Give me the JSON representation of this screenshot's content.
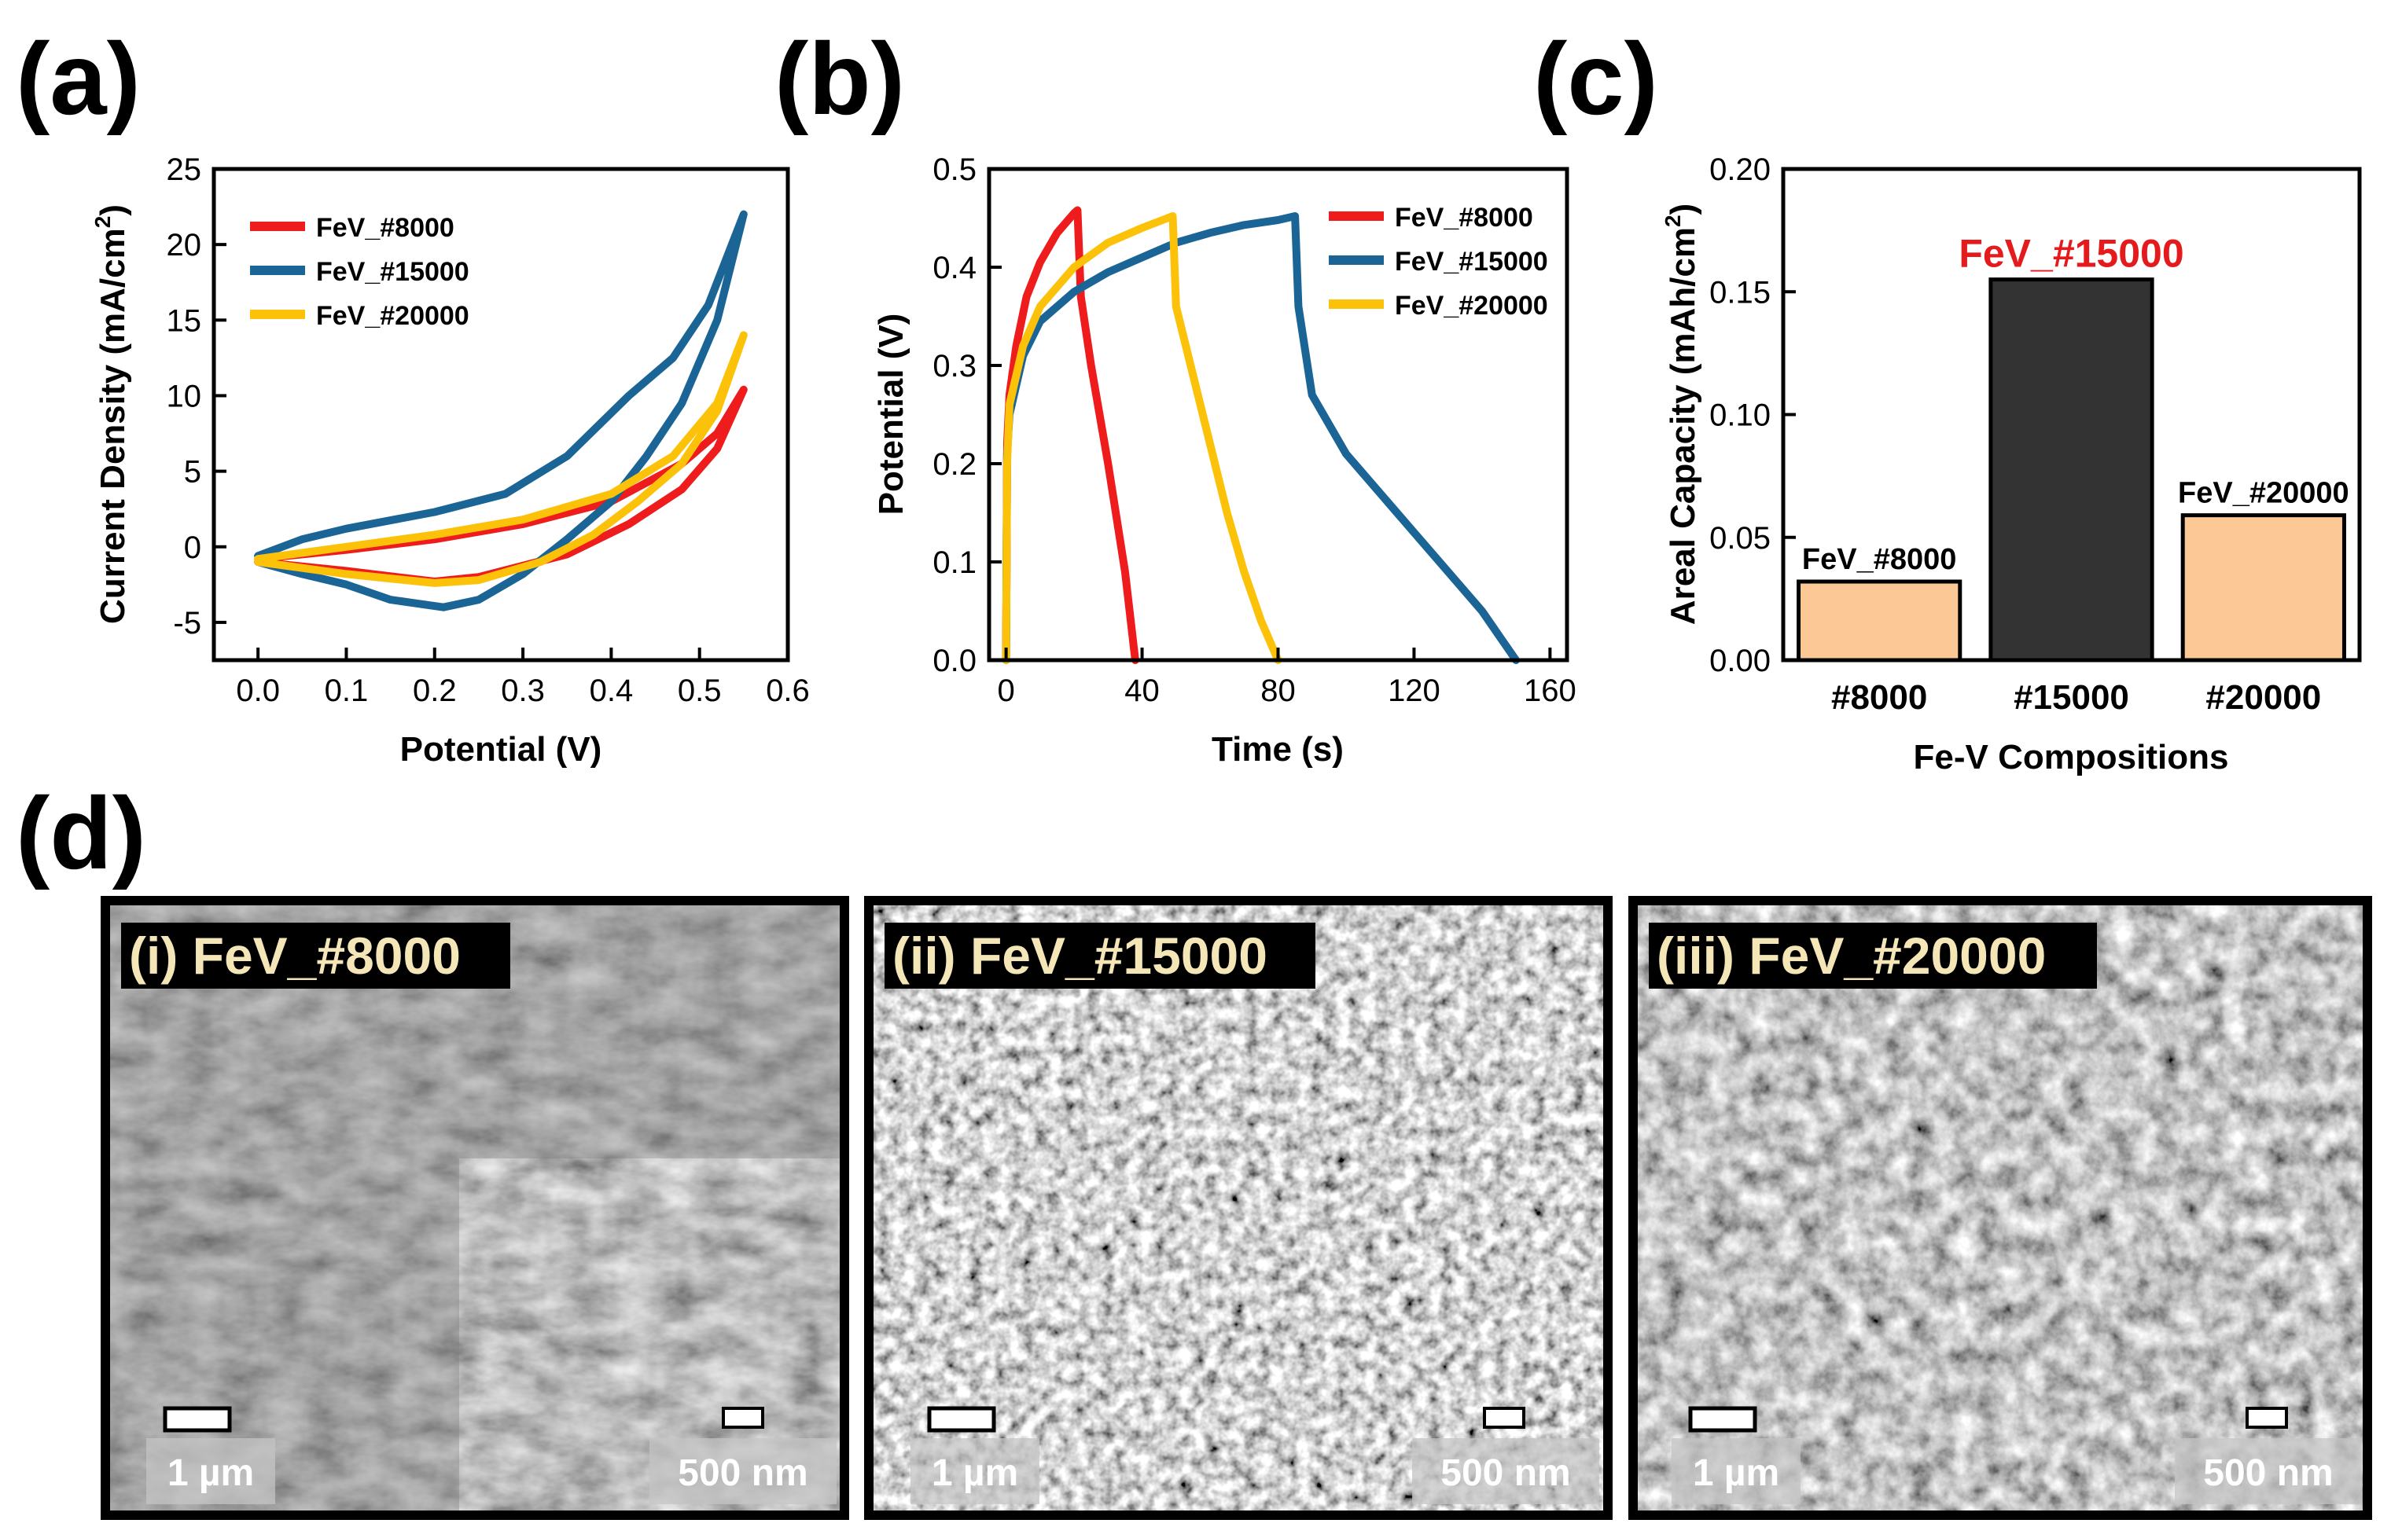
{
  "panel_labels": {
    "a": "(a)",
    "b": "(b)",
    "c": "(c)",
    "d": "(d)"
  },
  "colors": {
    "red": "#ee1c1c",
    "blue": "#1a6496",
    "yellow": "#fcc20a",
    "bar_light": "#fcc896",
    "bar_dark": "#333333",
    "highlight": "#e41a1c",
    "sem_caption": "#f5e6b8"
  },
  "chart_data": [
    {
      "id": "a",
      "type": "line",
      "title": "",
      "xlabel": "Potential (V)",
      "ylabel": "Current Density (mA/cm",
      "ylabel_sup": "2",
      "ylabel_end": ")",
      "xlim": [
        -0.05,
        0.6
      ],
      "ylim": [
        -7.5,
        25
      ],
      "xticks": [
        0.0,
        0.1,
        0.2,
        0.3,
        0.4,
        0.5,
        0.6
      ],
      "xtick_labels": [
        "0.0",
        "0.1",
        "0.2",
        "0.3",
        "0.4",
        "0.5",
        "0.6"
      ],
      "yticks": [
        -5,
        0,
        5,
        10,
        15,
        20,
        25
      ],
      "ytick_labels": [
        "-5",
        "0",
        "5",
        "10",
        "15",
        "20",
        "25"
      ],
      "legend": [
        "FeV_#8000",
        "FeV_#15000",
        "FeV_#20000"
      ],
      "series": [
        {
          "name": "FeV_#8000",
          "color": "#ee1c1c",
          "points": [
            [
              0.0,
              -0.8
            ],
            [
              0.1,
              -0.2
            ],
            [
              0.2,
              0.5
            ],
            [
              0.3,
              1.5
            ],
            [
              0.4,
              3.0
            ],
            [
              0.48,
              5.5
            ],
            [
              0.52,
              7.5
            ],
            [
              0.55,
              10.4
            ],
            [
              0.52,
              6.5
            ],
            [
              0.48,
              3.8
            ],
            [
              0.42,
              1.5
            ],
            [
              0.35,
              -0.5
            ],
            [
              0.25,
              -2.0
            ],
            [
              0.2,
              -2.3
            ],
            [
              0.1,
              -1.6
            ],
            [
              0.0,
              -1.0
            ]
          ]
        },
        {
          "name": "FeV_#15000",
          "color": "#1a6496",
          "points": [
            [
              0.0,
              -0.6
            ],
            [
              0.05,
              0.5
            ],
            [
              0.1,
              1.2
            ],
            [
              0.2,
              2.3
            ],
            [
              0.28,
              3.5
            ],
            [
              0.35,
              6.0
            ],
            [
              0.42,
              10.0
            ],
            [
              0.47,
              12.5
            ],
            [
              0.51,
              16.0
            ],
            [
              0.55,
              22.0
            ],
            [
              0.52,
              15.0
            ],
            [
              0.48,
              9.5
            ],
            [
              0.44,
              6.0
            ],
            [
              0.4,
              3.0
            ],
            [
              0.35,
              0.5
            ],
            [
              0.3,
              -1.8
            ],
            [
              0.25,
              -3.5
            ],
            [
              0.21,
              -4.0
            ],
            [
              0.15,
              -3.5
            ],
            [
              0.1,
              -2.5
            ],
            [
              0.05,
              -1.8
            ],
            [
              0.0,
              -1.0
            ]
          ]
        },
        {
          "name": "FeV_#20000",
          "color": "#fcc20a",
          "points": [
            [
              0.0,
              -0.8
            ],
            [
              0.1,
              0.0
            ],
            [
              0.2,
              0.8
            ],
            [
              0.3,
              1.8
            ],
            [
              0.4,
              3.5
            ],
            [
              0.47,
              6.0
            ],
            [
              0.52,
              9.5
            ],
            [
              0.55,
              14.0
            ],
            [
              0.52,
              9.0
            ],
            [
              0.48,
              5.5
            ],
            [
              0.43,
              3.0
            ],
            [
              0.38,
              0.8
            ],
            [
              0.32,
              -1.0
            ],
            [
              0.25,
              -2.2
            ],
            [
              0.2,
              -2.4
            ],
            [
              0.1,
              -1.8
            ],
            [
              0.0,
              -1.0
            ]
          ]
        }
      ]
    },
    {
      "id": "b",
      "type": "line",
      "title": "",
      "xlabel": "Time (s)",
      "ylabel": "Potential (V)",
      "xlim": [
        -5,
        165
      ],
      "ylim": [
        0.0,
        0.5
      ],
      "xticks": [
        0,
        40,
        80,
        120,
        160
      ],
      "xtick_labels": [
        "0",
        "40",
        "80",
        "120",
        "160"
      ],
      "yticks": [
        0.0,
        0.1,
        0.2,
        0.3,
        0.4,
        0.5
      ],
      "ytick_labels": [
        "0.0",
        "0.1",
        "0.2",
        "0.3",
        "0.4",
        "0.5"
      ],
      "legend": [
        "FeV_#8000",
        "FeV_#15000",
        "FeV_#20000"
      ],
      "series": [
        {
          "name": "FeV_#8000",
          "color": "#ee1c1c",
          "points": [
            [
              0,
              0.0
            ],
            [
              0.3,
              0.22
            ],
            [
              1,
              0.27
            ],
            [
              3,
              0.32
            ],
            [
              6,
              0.37
            ],
            [
              10,
              0.405
            ],
            [
              15,
              0.435
            ],
            [
              20,
              0.455
            ],
            [
              21,
              0.458
            ],
            [
              22,
              0.37
            ],
            [
              25,
              0.3
            ],
            [
              30,
              0.2
            ],
            [
              35,
              0.09
            ],
            [
              38,
              0.0
            ]
          ]
        },
        {
          "name": "FeV_#15000",
          "color": "#1a6496",
          "points": [
            [
              0,
              0.0
            ],
            [
              0.3,
              0.21
            ],
            [
              1,
              0.25
            ],
            [
              5,
              0.31
            ],
            [
              10,
              0.345
            ],
            [
              20,
              0.375
            ],
            [
              30,
              0.395
            ],
            [
              40,
              0.41
            ],
            [
              50,
              0.425
            ],
            [
              60,
              0.435
            ],
            [
              70,
              0.443
            ],
            [
              80,
              0.448
            ],
            [
              85,
              0.452
            ],
            [
              86,
              0.36
            ],
            [
              90,
              0.27
            ],
            [
              100,
              0.21
            ],
            [
              110,
              0.17
            ],
            [
              120,
              0.13
            ],
            [
              130,
              0.09
            ],
            [
              140,
              0.05
            ],
            [
              145,
              0.025
            ],
            [
              150,
              0.0
            ]
          ]
        },
        {
          "name": "FeV_#20000",
          "color": "#fcc20a",
          "points": [
            [
              0,
              0.0
            ],
            [
              0.3,
              0.2
            ],
            [
              1,
              0.26
            ],
            [
              5,
              0.32
            ],
            [
              10,
              0.36
            ],
            [
              20,
              0.4
            ],
            [
              30,
              0.425
            ],
            [
              40,
              0.44
            ],
            [
              49,
              0.452
            ],
            [
              50,
              0.36
            ],
            [
              55,
              0.29
            ],
            [
              60,
              0.22
            ],
            [
              65,
              0.15
            ],
            [
              70,
              0.09
            ],
            [
              75,
              0.04
            ],
            [
              80,
              0.0
            ]
          ]
        }
      ]
    },
    {
      "id": "c",
      "type": "bar",
      "title": "",
      "xlabel": "Fe-V Compositions",
      "ylabel": "Areal Capacity (mAh/cm",
      "ylabel_sup": "2",
      "ylabel_end": ")",
      "categories": [
        "#8000",
        "#15000",
        "#20000"
      ],
      "values": [
        0.032,
        0.155,
        0.059
      ],
      "bar_labels": [
        "FeV_#8000",
        "FeV_#15000",
        "FeV_#20000"
      ],
      "bar_colors": [
        "#fcc896",
        "#333333",
        "#fcc896"
      ],
      "label_colors": [
        "#000000",
        "#e41a1c",
        "#000000"
      ],
      "ylim": [
        0.0,
        0.2
      ],
      "yticks": [
        0.0,
        0.05,
        0.1,
        0.15,
        0.2
      ],
      "ytick_labels": [
        "0.00",
        "0.05",
        "0.10",
        "0.15",
        "0.20"
      ]
    }
  ],
  "sem_panels": [
    {
      "caption": "(i) FeV_#8000",
      "scale_main": "1 µm",
      "scale_inset": "500 nm"
    },
    {
      "caption": "(ii) FeV_#15000",
      "scale_main": "1 µm",
      "scale_inset": "500 nm"
    },
    {
      "caption": "(iii) FeV_#20000",
      "scale_main": "1 µm",
      "scale_inset": "500 nm"
    }
  ]
}
